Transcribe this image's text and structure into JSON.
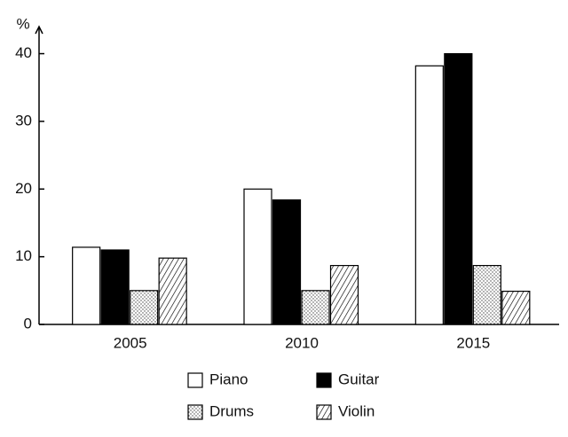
{
  "chart_data": {
    "type": "bar",
    "y_label": "%",
    "categories": [
      "2005",
      "2010",
      "2015"
    ],
    "series": [
      {
        "name": "Piano",
        "color": "#ffffff",
        "pattern": "solid",
        "values": [
          11.4,
          20,
          38.2
        ]
      },
      {
        "name": "Guitar",
        "color": "#000000",
        "pattern": "solid",
        "values": [
          11,
          18.4,
          40
        ]
      },
      {
        "name": "Drums",
        "color": "#ffffff",
        "pattern": "dots",
        "values": [
          5,
          5,
          8.7
        ]
      },
      {
        "name": "Violin",
        "color": "#ffffff",
        "pattern": "hatch",
        "values": [
          9.8,
          8.7,
          4.9
        ]
      }
    ],
    "ylim": [
      0,
      44
    ],
    "yticks": [
      0,
      10,
      20,
      30,
      40
    ],
    "grid": false
  }
}
